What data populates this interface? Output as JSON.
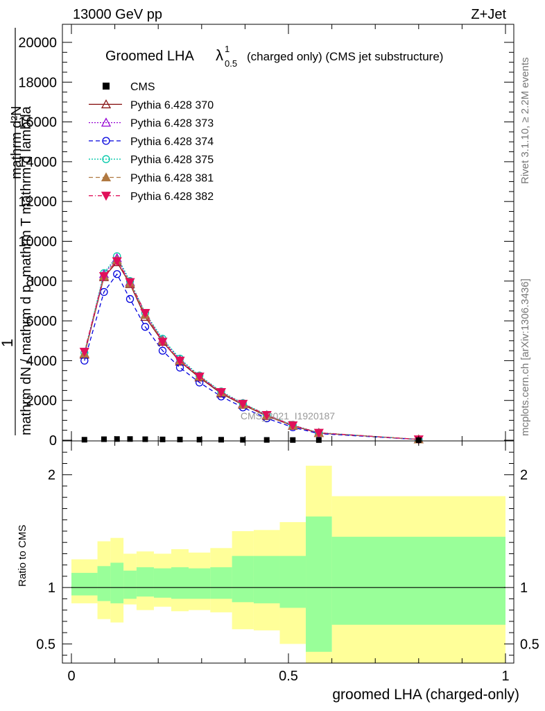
{
  "header": {
    "left": "13000 GeV pp",
    "right": "Z+Jet"
  },
  "plot_title": {
    "main": "Groomed LHA",
    "lambda": "λ",
    "sup": "1",
    "sub": "0.5",
    "rest": "(charged only) (CMS jet substructure)"
  },
  "side_labels": {
    "rivet": "Rivet 3.1.10, ≥ 2.2M events",
    "mcplots": "mcplots.cern.ch [arXiv:1306.3436]"
  },
  "watermark": "CMS_2021_I1920187",
  "axes": {
    "top_ylabel_line1": "mathrm d²N",
    "top_ylabel_line2": "1",
    "top_ylabel_line3": "mathrm dN / mathrm d p_mathrm T mathrm d lambda",
    "ratio_ylabel": "Ratio to CMS",
    "xlabel": "groomed LHA (charged-only)"
  },
  "colors": {
    "band_outer": "#ffff99",
    "band_inner": "#99ff99"
  },
  "chart_data": {
    "type": "line",
    "xlim": [
      0,
      1
    ],
    "ylim": [
      0,
      21000
    ],
    "ratio_ylim": [
      0.33,
      2.3
    ],
    "x_ticks": [
      "0",
      "0.5",
      "1"
    ],
    "y_ticks": [
      "0",
      "2000",
      "4000",
      "6000",
      "8000",
      "10000",
      "12000",
      "14000",
      "16000",
      "18000",
      "20000"
    ],
    "ratio_ticks": [
      "0.5",
      "1",
      "2"
    ],
    "bin_edges": [
      0,
      0.06,
      0.09,
      0.12,
      0.15,
      0.19,
      0.23,
      0.27,
      0.32,
      0.37,
      0.42,
      0.48,
      0.54,
      0.6,
      1.0
    ],
    "x": [
      0.03,
      0.075,
      0.105,
      0.135,
      0.17,
      0.21,
      0.25,
      0.295,
      0.345,
      0.395,
      0.45,
      0.51,
      0.57,
      0.8
    ],
    "cms": {
      "name": "CMS",
      "color": "#000000",
      "marker": "square",
      "values": [
        25,
        50,
        60,
        60,
        50,
        40,
        35,
        30,
        25,
        20,
        15,
        10,
        8,
        2
      ]
    },
    "series": [
      {
        "name": "Pythia 6.428 370",
        "color": "#8b1a1a",
        "dash": "",
        "marker": "triangle-open",
        "values": [
          4300,
          8200,
          8950,
          7850,
          6200,
          4950,
          3950,
          3150,
          2350,
          1780,
          1220,
          720,
          360,
          40
        ]
      },
      {
        "name": "Pythia 6.428 373",
        "color": "#9400d3",
        "dash": "2,2",
        "marker": "triangle-open",
        "values": [
          4350,
          8350,
          9150,
          7950,
          6300,
          5050,
          4050,
          3200,
          2400,
          1830,
          1260,
          740,
          370,
          40
        ]
      },
      {
        "name": "Pythia 6.428 374",
        "color": "#0000dd",
        "dash": "6,4",
        "marker": "circle-open",
        "values": [
          4000,
          7450,
          8350,
          7100,
          5700,
          4500,
          3650,
          2900,
          2200,
          1650,
          1100,
          650,
          330,
          35
        ]
      },
      {
        "name": "Pythia 6.428 375",
        "color": "#00c8a8",
        "dash": "2,2",
        "marker": "circle-open",
        "values": [
          4400,
          8400,
          9250,
          8000,
          6400,
          5100,
          4100,
          3250,
          2450,
          1860,
          1280,
          760,
          380,
          42
        ]
      },
      {
        "name": "Pythia 6.428 381",
        "color": "#b07840",
        "dash": "6,4",
        "marker": "triangle",
        "values": [
          4350,
          8250,
          9050,
          7900,
          6300,
          5000,
          4000,
          3200,
          2400,
          1800,
          1250,
          730,
          365,
          40
        ]
      },
      {
        "name": "Pythia 6.428 382",
        "color": "#e0105a",
        "dash": "6,3,1,3",
        "marker": "triangle-down",
        "values": [
          4450,
          8250,
          9000,
          7950,
          6400,
          4950,
          4000,
          3200,
          2420,
          1830,
          1270,
          750,
          375,
          41
        ]
      }
    ],
    "ratio_band_inner": [
      [
        0.93,
        1.13
      ],
      [
        0.88,
        1.19
      ],
      [
        0.86,
        1.22
      ],
      [
        0.9,
        1.15
      ],
      [
        0.92,
        1.18
      ],
      [
        0.91,
        1.17
      ],
      [
        0.9,
        1.18
      ],
      [
        0.9,
        1.17
      ],
      [
        0.9,
        1.18
      ],
      [
        0.87,
        1.28
      ],
      [
        0.86,
        1.28
      ],
      [
        0.82,
        1.28
      ],
      [
        0.43,
        1.63
      ],
      [
        0.67,
        1.45
      ]
    ],
    "ratio_band_outer": [
      [
        0.86,
        1.25
      ],
      [
        0.72,
        1.41
      ],
      [
        0.69,
        1.44
      ],
      [
        0.85,
        1.3
      ],
      [
        0.8,
        1.32
      ],
      [
        0.83,
        1.3
      ],
      [
        0.79,
        1.34
      ],
      [
        0.8,
        1.31
      ],
      [
        0.78,
        1.35
      ],
      [
        0.63,
        1.5
      ],
      [
        0.62,
        1.51
      ],
      [
        0.5,
        1.58
      ],
      [
        0.33,
        2.08
      ],
      [
        0.33,
        1.81
      ]
    ]
  }
}
